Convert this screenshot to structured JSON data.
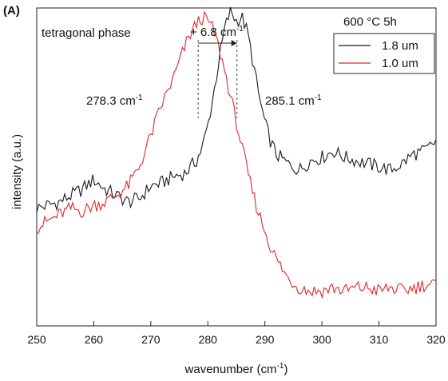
{
  "panel_label": "(A)",
  "chart_data": {
    "type": "line",
    "xlabel": "wavenumber (cm",
    "xlabel_sup": "-1",
    "xlabel_tail": ")",
    "ylabel": "intensity (a.u.)",
    "xlim": [
      250,
      320
    ],
    "ylim": [
      0,
      1
    ],
    "x_ticks": [
      250,
      260,
      270,
      280,
      290,
      300,
      310,
      320
    ],
    "x_tick_labels": [
      "250",
      "260",
      "270",
      "280",
      "290",
      "300",
      "310",
      "320"
    ],
    "grid": false,
    "legend_position": "top-right",
    "annotations": {
      "condition": "600 °C 5h",
      "phase": "tetragonal phase",
      "shift": "+ 6.8 cm",
      "shift_sup": "-1",
      "peak_left": "278.3 cm",
      "peak_left_sup": "-1",
      "peak_right": "285.1 cm",
      "peak_right_sup": "-1",
      "peak_left_x": 278.3,
      "peak_right_x": 285.1
    },
    "series": [
      {
        "name": "1.8 um",
        "color": "#1a1a1a",
        "x": [
          250,
          252,
          254,
          256,
          258,
          260,
          262,
          264,
          266,
          268,
          270,
          272,
          274,
          276,
          278,
          279,
          280,
          281,
          282,
          283,
          284,
          285,
          286,
          287,
          288,
          289,
          290,
          291,
          292,
          294,
          296,
          298,
          300,
          302,
          304,
          306,
          308,
          310,
          312,
          314,
          316,
          318,
          320
        ],
        "y": [
          0.37,
          0.38,
          0.39,
          0.41,
          0.43,
          0.46,
          0.43,
          0.41,
          0.39,
          0.4,
          0.44,
          0.45,
          0.47,
          0.48,
          0.52,
          0.56,
          0.63,
          0.73,
          0.84,
          0.94,
          0.99,
          0.96,
          0.97,
          0.92,
          0.82,
          0.72,
          0.64,
          0.58,
          0.54,
          0.51,
          0.49,
          0.52,
          0.53,
          0.55,
          0.53,
          0.52,
          0.51,
          0.5,
          0.49,
          0.51,
          0.54,
          0.55,
          0.58
        ]
      },
      {
        "name": "1.0 um",
        "color": "#e0262b",
        "x": [
          250,
          252,
          254,
          256,
          258,
          260,
          262,
          264,
          266,
          268,
          270,
          272,
          274,
          275,
          276,
          277,
          278,
          279,
          280,
          281,
          282,
          283,
          284,
          285,
          286,
          287,
          288,
          289,
          290,
          291,
          292,
          294,
          296,
          298,
          300,
          302,
          304,
          306,
          308,
          310,
          312,
          314,
          316,
          318,
          320
        ],
        "y": [
          0.31,
          0.33,
          0.35,
          0.37,
          0.36,
          0.38,
          0.39,
          0.41,
          0.44,
          0.5,
          0.6,
          0.7,
          0.78,
          0.83,
          0.88,
          0.92,
          0.95,
          0.97,
          0.96,
          0.93,
          0.87,
          0.8,
          0.72,
          0.64,
          0.56,
          0.48,
          0.41,
          0.35,
          0.3,
          0.25,
          0.21,
          0.15,
          0.12,
          0.11,
          0.11,
          0.12,
          0.11,
          0.12,
          0.12,
          0.11,
          0.12,
          0.11,
          0.12,
          0.13,
          0.13
        ]
      }
    ]
  }
}
